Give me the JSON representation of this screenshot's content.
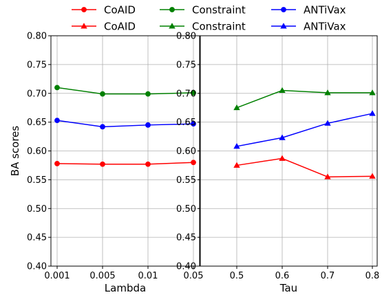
{
  "legend": {
    "placement": "top",
    "entries": [
      {
        "label": "CoAID",
        "color": "#ff0000",
        "marker": "circle"
      },
      {
        "label": "CoAID",
        "color": "#ff0000",
        "marker": "triangle"
      },
      {
        "label": "Constraint",
        "color": "#008000",
        "marker": "circle"
      },
      {
        "label": "Constraint",
        "color": "#008000",
        "marker": "triangle"
      },
      {
        "label": "ANTiVax",
        "color": "#0000ff",
        "marker": "circle"
      },
      {
        "label": "ANTiVax",
        "color": "#0000ff",
        "marker": "triangle"
      }
    ]
  },
  "chart_data": [
    {
      "type": "line",
      "xlabel": "Lambda",
      "ylabel": "BA scores",
      "categories": [
        "0.001",
        "0.005",
        "0.01",
        "0.05"
      ],
      "ylim": [
        0.4,
        0.8
      ],
      "yticks": [
        "0.40",
        "0.45",
        "0.50",
        "0.55",
        "0.60",
        "0.65",
        "0.70",
        "0.75",
        "0.80"
      ],
      "grid": true,
      "marker": "circle",
      "series": [
        {
          "name": "CoAID",
          "color": "#ff0000",
          "values": [
            0.578,
            0.577,
            0.577,
            0.58
          ]
        },
        {
          "name": "Constraint",
          "color": "#008000",
          "values": [
            0.71,
            0.699,
            0.699,
            0.701
          ]
        },
        {
          "name": "ANTiVax",
          "color": "#0000ff",
          "values": [
            0.653,
            0.642,
            0.645,
            0.647
          ]
        }
      ]
    },
    {
      "type": "line",
      "xlabel": "Tau",
      "ylabel": "",
      "categories": [
        "0.5",
        "0.6",
        "0.7",
        "0.8"
      ],
      "ylim": [
        0.4,
        0.8
      ],
      "yticks": [
        "0.40",
        "0.45",
        "0.50",
        "0.55",
        "0.60",
        "0.65",
        "0.70",
        "0.75",
        "0.80"
      ],
      "grid": true,
      "marker": "triangle",
      "series": [
        {
          "name": "CoAID",
          "color": "#ff0000",
          "values": [
            0.575,
            0.587,
            0.555,
            0.556
          ]
        },
        {
          "name": "Constraint",
          "color": "#008000",
          "values": [
            0.675,
            0.705,
            0.701,
            0.701
          ]
        },
        {
          "name": "ANTiVax",
          "color": "#0000ff",
          "values": [
            0.608,
            0.623,
            0.648,
            0.665
          ]
        }
      ]
    }
  ]
}
